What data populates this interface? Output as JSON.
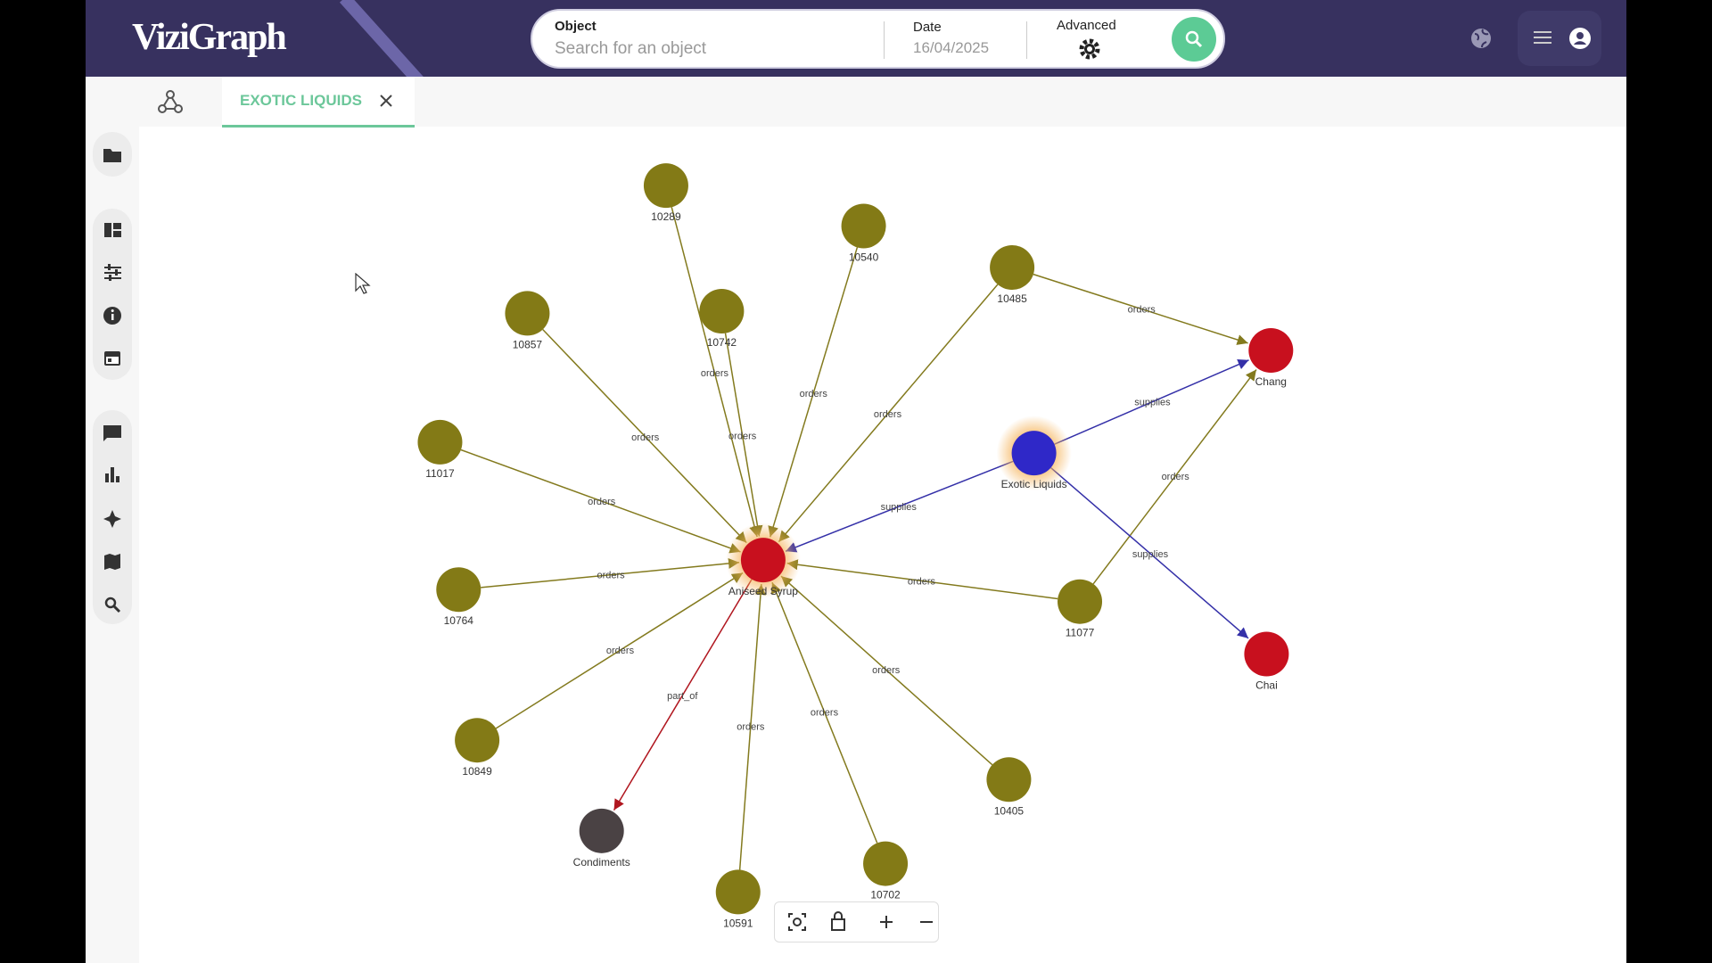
{
  "header": {
    "logo": "ViziGraph",
    "object_label": "Object",
    "object_placeholder": "Search for an object",
    "date_label": "Date",
    "date_value": "16/04/2025",
    "advanced_label": "Advanced"
  },
  "tab": {
    "title": "EXOTIC LIQUIDS"
  },
  "graph": {
    "nodes": [
      {
        "label": "Aniseed Syrup"
      },
      {
        "label": "Exotic Liquids"
      },
      {
        "label": "Chang"
      },
      {
        "label": "Chai"
      },
      {
        "label": "Condiments"
      },
      {
        "label": "10289"
      },
      {
        "label": "10540"
      },
      {
        "label": "10485"
      },
      {
        "label": "10857"
      },
      {
        "label": "10742"
      },
      {
        "label": "11017"
      },
      {
        "label": "10764"
      },
      {
        "label": "10849"
      },
      {
        "label": "10591"
      },
      {
        "label": "10702"
      },
      {
        "label": "10405"
      },
      {
        "label": "11077"
      }
    ],
    "edges": [
      {
        "label": "orders"
      },
      {
        "label": "orders"
      },
      {
        "label": "orders"
      },
      {
        "label": "orders"
      },
      {
        "label": "orders"
      },
      {
        "label": "orders"
      },
      {
        "label": "orders"
      },
      {
        "label": "orders"
      },
      {
        "label": "orders"
      },
      {
        "label": "orders"
      },
      {
        "label": "orders"
      },
      {
        "label": "orders"
      },
      {
        "label": "orders"
      },
      {
        "label": "orders"
      },
      {
        "label": "supplies"
      },
      {
        "label": "supplies"
      },
      {
        "label": "supplies"
      },
      {
        "label": "part_of"
      }
    ]
  }
}
